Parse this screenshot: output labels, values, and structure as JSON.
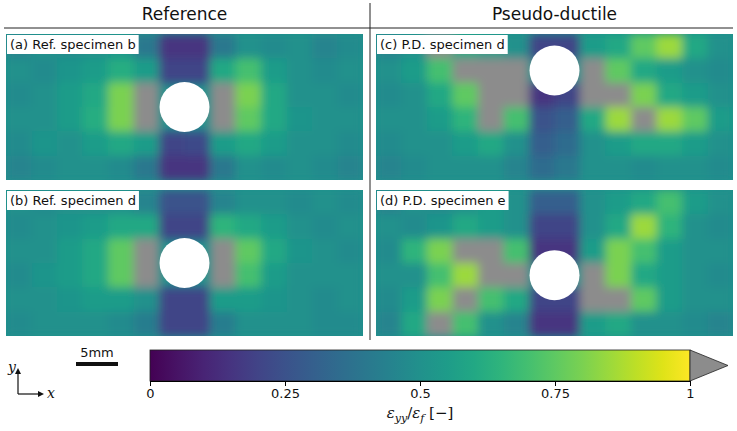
{
  "chart_data": {
    "type": "heatmap",
    "columns": [
      {
        "title": "Reference",
        "panels": [
          {
            "title": "(a) Ref. specimen b",
            "cells": [
              [
                0.45,
                0.5,
                0.48,
                0.5,
                0.52,
                0.4,
                0.15,
                0.15,
                0.4,
                0.5,
                0.48,
                0.5,
                0.45,
                0.48
              ],
              [
                0.5,
                0.48,
                0.52,
                0.55,
                0.62,
                0.55,
                0.2,
                0.2,
                0.6,
                0.7,
                0.55,
                0.5,
                0.48,
                0.5
              ],
              [
                0.48,
                0.5,
                0.55,
                0.6,
                0.8,
                1.1,
                null,
                null,
                1.1,
                0.8,
                0.6,
                0.5,
                0.5,
                0.48
              ],
              [
                0.5,
                0.5,
                0.55,
                0.62,
                0.8,
                1.1,
                null,
                null,
                1.1,
                0.75,
                0.6,
                0.52,
                0.5,
                0.5
              ],
              [
                0.48,
                0.52,
                0.5,
                0.55,
                0.6,
                0.55,
                0.2,
                0.22,
                0.55,
                0.6,
                0.55,
                0.5,
                0.5,
                0.48
              ],
              [
                0.45,
                0.48,
                0.5,
                0.5,
                0.48,
                0.4,
                0.15,
                0.15,
                0.4,
                0.5,
                0.48,
                0.5,
                0.48,
                0.45
              ]
            ]
          },
          {
            "title": "(b) Ref. specimen d",
            "cells": [
              [
                0.5,
                0.48,
                0.5,
                0.5,
                0.5,
                0.45,
                0.25,
                0.25,
                0.45,
                0.5,
                0.5,
                0.48,
                0.5,
                0.48
              ],
              [
                0.48,
                0.5,
                0.52,
                0.55,
                0.6,
                0.6,
                0.2,
                0.2,
                0.65,
                0.6,
                0.55,
                0.5,
                0.48,
                0.5
              ],
              [
                0.5,
                0.5,
                0.55,
                0.6,
                0.75,
                1.1,
                null,
                null,
                1.1,
                0.75,
                0.6,
                0.52,
                0.5,
                0.48
              ],
              [
                0.48,
                0.52,
                0.55,
                0.6,
                0.75,
                1.05,
                null,
                null,
                1.05,
                0.7,
                0.55,
                0.5,
                0.5,
                0.5
              ],
              [
                0.5,
                0.5,
                0.52,
                0.55,
                0.55,
                0.5,
                0.2,
                0.2,
                0.55,
                0.55,
                0.52,
                0.5,
                0.48,
                0.5
              ],
              [
                0.48,
                0.5,
                0.5,
                0.5,
                0.48,
                0.42,
                0.2,
                0.2,
                0.42,
                0.5,
                0.5,
                0.5,
                0.48,
                0.48
              ]
            ]
          }
        ]
      },
      {
        "title": "Pseudo-ductile",
        "panels": [
          {
            "title": "(c) P.D. specimen d",
            "cells": [
              [
                0.45,
                0.5,
                1.05,
                0.6,
                0.55,
                0.5,
                0.2,
                0.2,
                0.55,
                0.6,
                0.75,
                0.85,
                0.6,
                0.5
              ],
              [
                0.5,
                0.55,
                0.7,
                1.1,
                1.1,
                1.1,
                null,
                null,
                1.1,
                0.75,
                0.6,
                0.55,
                0.5,
                0.48
              ],
              [
                0.48,
                0.5,
                0.6,
                0.75,
                1.1,
                1.1,
                0.15,
                0.2,
                1.1,
                1.1,
                0.8,
                0.6,
                0.55,
                0.5
              ],
              [
                0.5,
                0.5,
                0.55,
                0.65,
                1.05,
                0.7,
                0.25,
                0.3,
                0.6,
                0.85,
                1.05,
                0.85,
                0.75,
                0.55
              ],
              [
                0.48,
                0.5,
                0.5,
                0.55,
                0.6,
                0.5,
                0.3,
                0.35,
                0.5,
                0.55,
                0.6,
                0.6,
                0.55,
                0.5
              ],
              [
                0.45,
                0.48,
                0.5,
                0.5,
                0.5,
                0.45,
                0.35,
                0.4,
                0.5,
                0.5,
                0.48,
                0.5,
                0.5,
                0.48
              ]
            ]
          },
          {
            "title": "(d) P.D. specimen e",
            "cells": [
              [
                0.45,
                0.5,
                0.48,
                0.5,
                0.55,
                0.5,
                0.3,
                0.3,
                0.5,
                0.55,
                0.6,
                0.7,
                0.55,
                0.5
              ],
              [
                0.5,
                0.48,
                0.52,
                0.6,
                0.55,
                0.5,
                0.2,
                0.2,
                0.5,
                0.6,
                0.85,
                0.65,
                0.5,
                0.48
              ],
              [
                0.48,
                0.65,
                0.8,
                1.1,
                1.05,
                0.7,
                0.15,
                0.15,
                0.55,
                0.8,
                0.7,
                0.55,
                0.5,
                0.5
              ],
              [
                0.5,
                0.5,
                0.7,
                0.85,
                1.1,
                1.1,
                null,
                null,
                1.1,
                0.8,
                0.6,
                0.55,
                0.5,
                0.48
              ],
              [
                0.48,
                0.55,
                0.8,
                1.1,
                0.7,
                0.6,
                0.2,
                0.2,
                1.1,
                1.1,
                0.75,
                0.55,
                0.5,
                0.5
              ],
              [
                0.45,
                0.6,
                1.05,
                0.7,
                0.5,
                0.45,
                0.15,
                0.15,
                0.55,
                0.6,
                0.5,
                0.5,
                0.48,
                0.45
              ]
            ]
          }
        ]
      }
    ],
    "colorbar": {
      "label": "εyy/εf [−]",
      "range": [
        0,
        1
      ],
      "ticks": [
        0,
        0.25,
        0.5,
        0.75,
        1
      ]
    },
    "scale_bar": "5mm",
    "axis_labels": {
      "x": "x",
      "y": "y"
    }
  }
}
